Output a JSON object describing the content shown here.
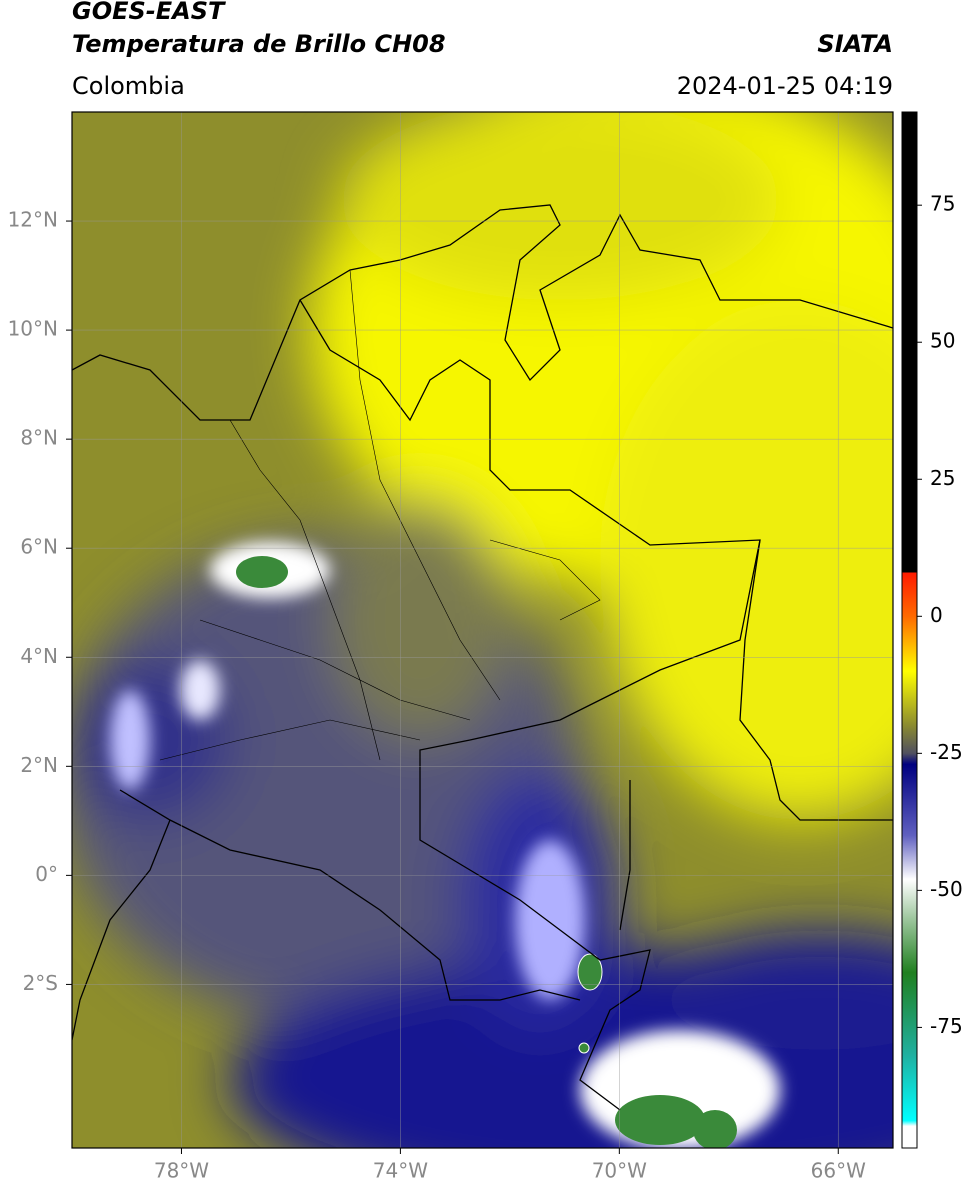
{
  "header": {
    "title": "GOES-EAST",
    "subtitle": "Temperatura de Brillo CH08",
    "source": "SIATA",
    "region": "Colombia",
    "timestamp": "2024-01-25 04:19"
  },
  "map": {
    "lonlim": [
      -80,
      -65
    ],
    "latlim": [
      -5,
      14
    ],
    "lonticks": [
      {
        "value": -78,
        "label": "78°W"
      },
      {
        "value": -74,
        "label": "74°W"
      },
      {
        "value": -70,
        "label": "70°W"
      },
      {
        "value": -66,
        "label": "66°W"
      }
    ],
    "latticks": [
      {
        "value": 12,
        "label": "12°N"
      },
      {
        "value": 10,
        "label": "10°N"
      },
      {
        "value": 8,
        "label": "8°N"
      },
      {
        "value": 6,
        "label": "6°N"
      },
      {
        "value": 4,
        "label": "4°N"
      },
      {
        "value": 2,
        "label": "2°N"
      },
      {
        "value": 0,
        "label": "0°"
      },
      {
        "value": -2,
        "label": "2°S"
      }
    ],
    "grid": true
  },
  "colorbar": {
    "lim": [
      -97,
      92
    ],
    "ticks": [
      75,
      50,
      25,
      0,
      -25,
      -50,
      -75
    ],
    "colormap": [
      [
        92,
        "#000000"
      ],
      [
        8,
        "#000000"
      ],
      [
        8,
        "#ff1a00"
      ],
      [
        0,
        "#ff6a00"
      ],
      [
        -10,
        "#ffff00"
      ],
      [
        -20,
        "#8a8a30"
      ],
      [
        -25,
        "#505060"
      ],
      [
        -27,
        "#000080"
      ],
      [
        -40,
        "#6060c0"
      ],
      [
        -48,
        "#ffffff"
      ],
      [
        -55,
        "#a0c8a0"
      ],
      [
        -65,
        "#208020"
      ],
      [
        -80,
        "#20b0a0"
      ],
      [
        -92,
        "#00ffff"
      ],
      [
        -93,
        "#ffffff"
      ],
      [
        -97,
        "#ffffff"
      ]
    ]
  }
}
